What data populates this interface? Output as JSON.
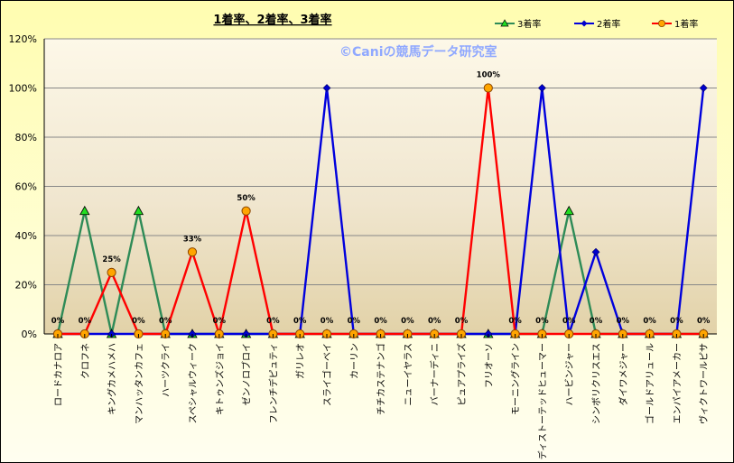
{
  "chart_data": {
    "type": "line",
    "title": "1着率、2着率、3着率",
    "watermark": "©Caniの競馬データ研究室",
    "ylim": [
      0,
      120
    ],
    "yticks": [
      "0%",
      "20%",
      "40%",
      "60%",
      "80%",
      "100%",
      "120%"
    ],
    "ytick_values": [
      0,
      20,
      40,
      60,
      80,
      100,
      120
    ],
    "grid": "horizontal",
    "legend_position": "top-right",
    "categories": [
      "ロードカナロア",
      "クロフネ",
      "キングカメハメハ",
      "マンハッタンカフェ",
      "ハーツクライ",
      "スペシャルウィーク",
      "キトゥンズジョイ",
      "ゼンノロブロイ",
      "フレンチデピュティ",
      "ガリレオ",
      "スライゴーベイ",
      "カーリン",
      "チチカステナンゴ",
      "ニューイヤラス",
      "バーナーディニ",
      "ピュアプライズ",
      "フリオーソ",
      "モーニングライン",
      "ディストーテッドヒューマー",
      "ハービンジャー",
      "シンボリクリスエス",
      "ダイワメジャー",
      "ゴールドアリュール",
      "エンパイアメーカー",
      "ヴィクトワールピサ"
    ],
    "series": [
      {
        "name": "3着率",
        "color": "#2e8b57",
        "marker": "triangle",
        "marker_fill": "#22dd22",
        "values": [
          0,
          50,
          0,
          50,
          0,
          0,
          0,
          0,
          0,
          0,
          0,
          0,
          0,
          0,
          0,
          0,
          0,
          0,
          0,
          50,
          0,
          0,
          0,
          0,
          0
        ]
      },
      {
        "name": "2着率",
        "color": "#0000dd",
        "marker": "diamond",
        "marker_fill": "#0000cc",
        "values": [
          0,
          0,
          0,
          0,
          0,
          0,
          0,
          0,
          0,
          0,
          100,
          0,
          0,
          0,
          0,
          0,
          0,
          0,
          100,
          0,
          33.3,
          0,
          0,
          0,
          100
        ]
      },
      {
        "name": "1着率",
        "color": "#ff0000",
        "marker": "circle",
        "marker_fill": "#ffa500",
        "values": [
          0,
          0,
          25,
          0,
          0,
          33.3,
          0,
          50,
          0,
          0,
          0,
          0,
          0,
          0,
          0,
          0,
          100,
          0,
          0,
          0,
          0,
          0,
          0,
          0,
          0
        ]
      }
    ],
    "data_labels": [
      "0%",
      "0%",
      "25%",
      "0%",
      "0%",
      "33%",
      "0%",
      "50%",
      "0%",
      "0%",
      "0%",
      "0%",
      "0%",
      "0%",
      "0%",
      "0%",
      "100%",
      "0%",
      "0%",
      "0%",
      "0%",
      "0%",
      "0%",
      "0%",
      "0%"
    ]
  }
}
